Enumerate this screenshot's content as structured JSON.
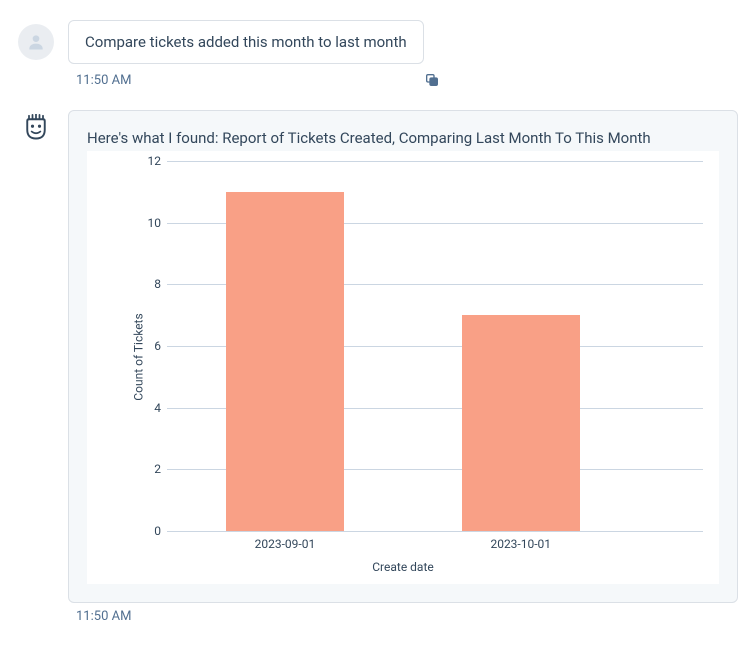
{
  "user_message": {
    "text": "Compare tickets added this month to last month",
    "timestamp": "11:50 AM"
  },
  "bot_message": {
    "title": "Here's what I found: Report of Tickets Created, Comparing Last Month To This Month",
    "timestamp": "11:50 AM"
  },
  "chart": {
    "type": "bar",
    "x_label": "Create date",
    "y_label": "Count of Tickets",
    "y_max": 12,
    "y_ticks": [
      0,
      2,
      4,
      6,
      8,
      10,
      12
    ],
    "bar_color": "#f9a086",
    "grid_color": "#cbd6e2",
    "background_color": "#ffffff",
    "bars": [
      {
        "label": "2023-09-01",
        "value": 11
      },
      {
        "label": "2023-10-01",
        "value": 7
      }
    ],
    "bar_width_pct": 22,
    "bar_positions_pct": [
      11,
      55
    ]
  }
}
